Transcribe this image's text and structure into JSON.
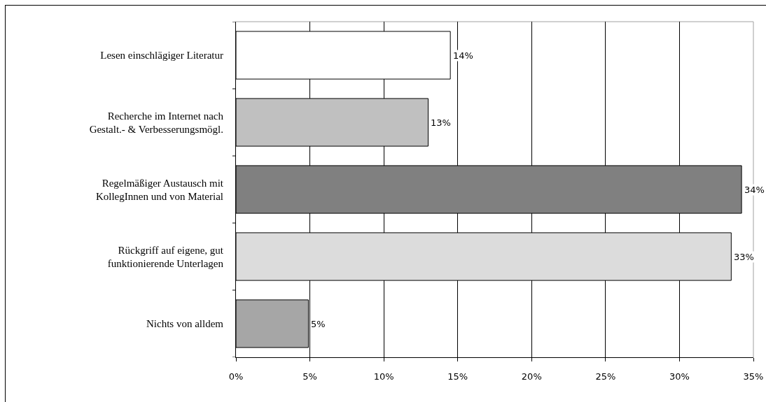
{
  "chart_data": {
    "type": "bar",
    "orientation": "horizontal",
    "categories": [
      "Lesen einschlägiger Literatur",
      "Recherche im Internet nach Gestalt.- & Verbesserungsmögl.",
      "Regelmäßiger Austausch mit KollegInnen und von Material",
      "Rückgriff auf eigene, gut funktionierende Unterlagen",
      "Nichts von alldem"
    ],
    "values": [
      14.5,
      13.0,
      34.2,
      33.5,
      4.9
    ],
    "colors": [
      "#ffffff",
      "#c0c0c0",
      "#808080",
      "#dcdcdc",
      "#a6a6a6"
    ],
    "value_labels": [
      "14%",
      "13%",
      "34%",
      "33%",
      "5%"
    ],
    "xlim": [
      0,
      35
    ],
    "xticks": [
      {
        "value": 0,
        "label": "0%"
      },
      {
        "value": 5,
        "label": "5%"
      },
      {
        "value": 10,
        "label": "10%"
      },
      {
        "value": 15,
        "label": "15%"
      },
      {
        "value": 20,
        "label": "20%"
      },
      {
        "value": 25,
        "label": "25%"
      },
      {
        "value": 30,
        "label": "30%"
      },
      {
        "value": 35,
        "label": "35%"
      }
    ],
    "grid": "x"
  }
}
